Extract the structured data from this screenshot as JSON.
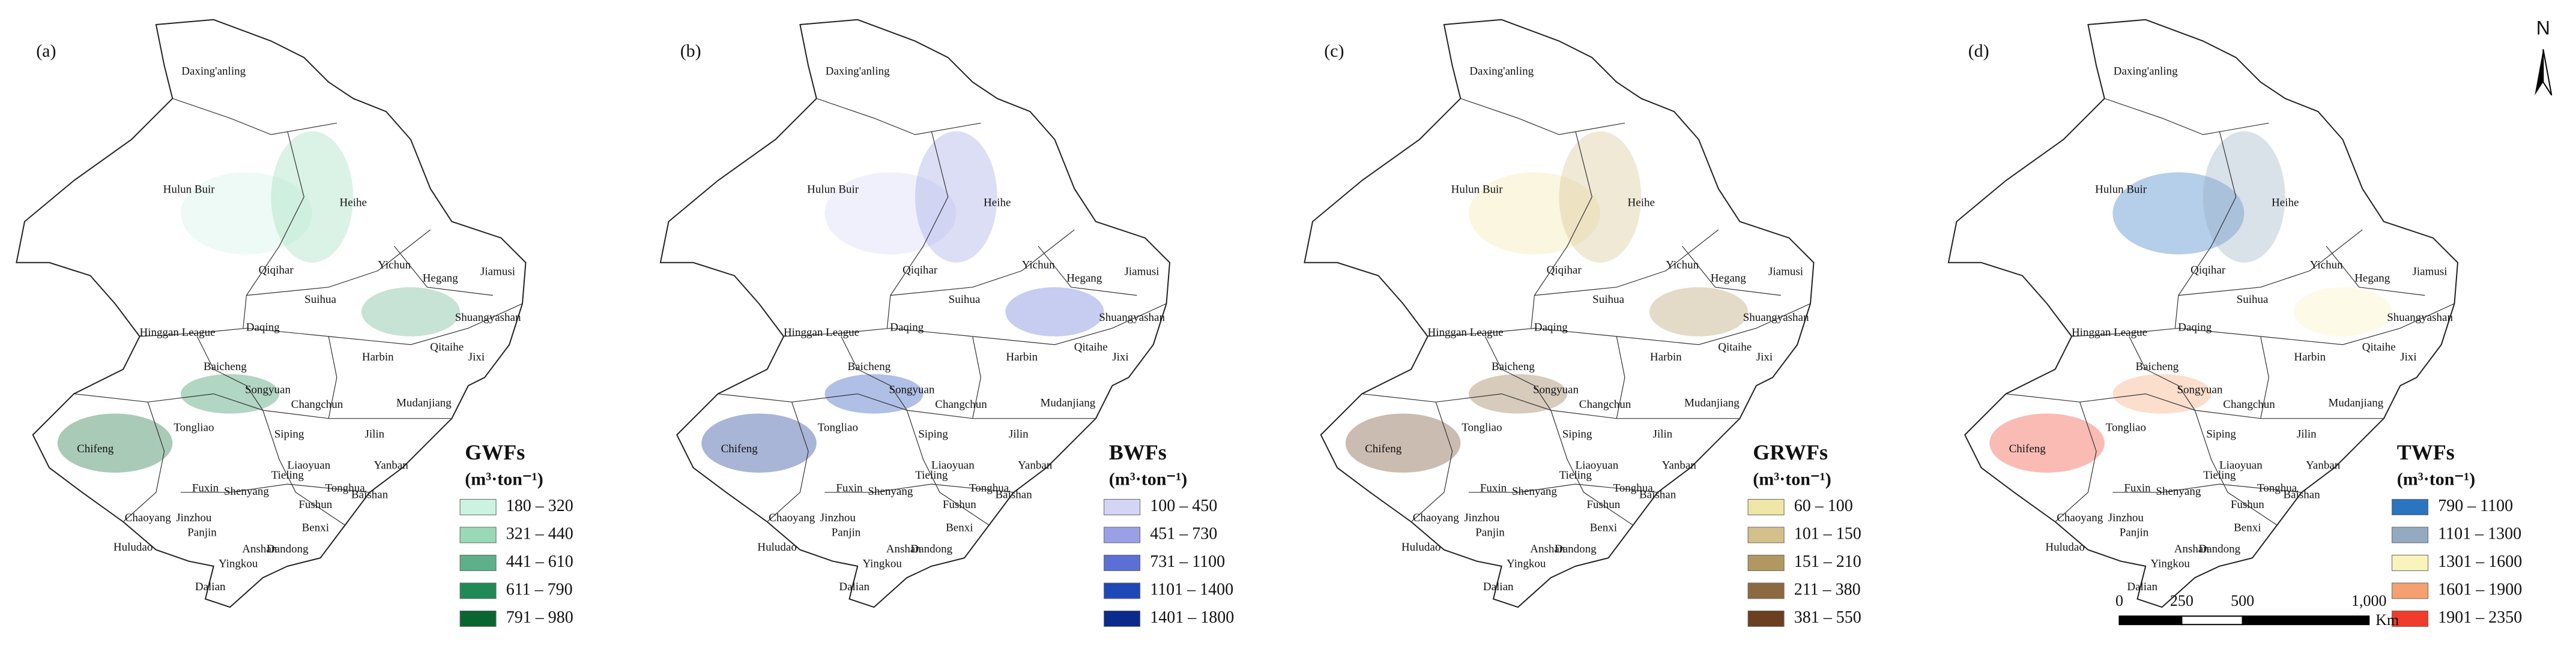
{
  "panels": [
    {
      "label": "(a)",
      "legend": {
        "title": "GWFs",
        "unit": "(m³·ton⁻¹)",
        "items": [
          {
            "label": "180 – 320",
            "color": "#ccf2e2"
          },
          {
            "label": "321 – 440",
            "color": "#99d9b8"
          },
          {
            "label": "441 – 610",
            "color": "#5db08a"
          },
          {
            "label": "611 – 790",
            "color": "#1f8a55"
          },
          {
            "label": "791 – 980",
            "color": "#0a6630"
          }
        ]
      }
    },
    {
      "label": "(b)",
      "legend": {
        "title": "BWFs",
        "unit": "(m³·ton⁻¹)",
        "items": [
          {
            "label": "100 – 450",
            "color": "#d4d5f5"
          },
          {
            "label": "451 – 730",
            "color": "#9aa0e6"
          },
          {
            "label": "731 – 1100",
            "color": "#5b6fd6"
          },
          {
            "label": "1101 – 1400",
            "color": "#1e48b8"
          },
          {
            "label": "1401 – 1800",
            "color": "#0a2a8c"
          }
        ]
      }
    },
    {
      "label": "(c)",
      "legend": {
        "title": "GRWFs",
        "unit": "(m³·ton⁻¹)",
        "items": [
          {
            "label": "60 – 100",
            "color": "#f0e6a6"
          },
          {
            "label": "101 – 150",
            "color": "#d4c08a"
          },
          {
            "label": "151 – 210",
            "color": "#b09860"
          },
          {
            "label": "211 – 380",
            "color": "#8c6a40"
          },
          {
            "label": "381 – 550",
            "color": "#6b4020"
          }
        ]
      }
    },
    {
      "label": "(d)",
      "legend": {
        "title": "TWFs",
        "unit": "(m³·ton⁻¹)",
        "items": [
          {
            "label": "790 – 1100",
            "color": "#2a74c0"
          },
          {
            "label": "1101 – 1300",
            "color": "#93aac0"
          },
          {
            "label": "1301 – 1600",
            "color": "#f8f4bc"
          },
          {
            "label": "1601 – 1900",
            "color": "#f5a070"
          },
          {
            "label": "1901 – 2350",
            "color": "#f03c2c"
          }
        ]
      }
    }
  ],
  "cities": [
    "Daxing'anling",
    "Hulun Buir",
    "Heihe",
    "Qiqihar",
    "Yichun",
    "Jiamusi",
    "Hegang",
    "Suihua",
    "Shuangyashan",
    "Hinggan League",
    "Daqing",
    "Harbin",
    "Qitaihe",
    "Jixi",
    "Baicheng",
    "Songyuan",
    "Mudanjiang",
    "Changchun",
    "Chifeng",
    "Tongliao",
    "Siping",
    "Jilin",
    "Liaoyuan",
    "Tieling",
    "Yanban",
    "Fuxin",
    "Shenyang",
    "Tonghua",
    "Baishan",
    "Fushun",
    "Chaoyang",
    "Jinzhou",
    "Benxi",
    "Panjin",
    "Anshan",
    "Huludao",
    "Dandong",
    "Yingkou",
    "Dalian"
  ],
  "scale_bar": {
    "ticks": [
      "0",
      "250",
      "500",
      "1,000"
    ],
    "unit": "Km"
  },
  "north": "N"
}
